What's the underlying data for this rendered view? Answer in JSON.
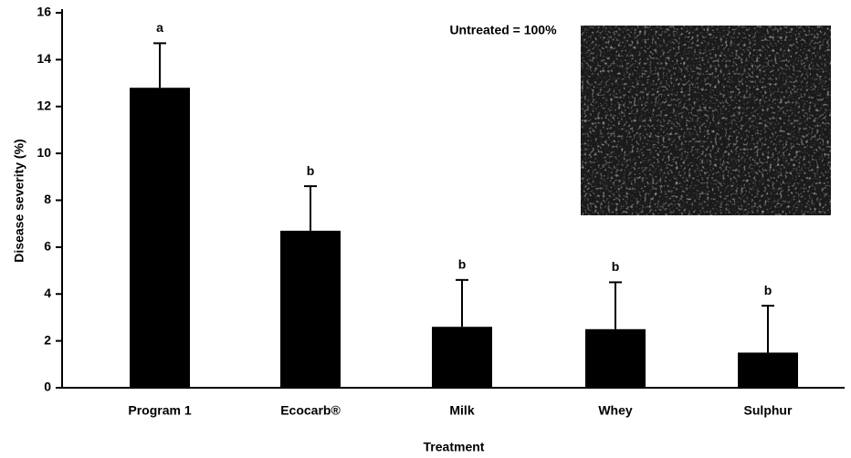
{
  "chart_data": {
    "type": "bar",
    "x_label": "Treatment",
    "y_label": "Disease severity (%)",
    "annotation": "Untreated = 100%",
    "categories": [
      "Program 1",
      "Ecocarb®",
      "Milk",
      "Whey",
      "Sulphur"
    ],
    "values": [
      12.8,
      6.7,
      2.6,
      2.5,
      1.5
    ],
    "errors": [
      1.9,
      1.9,
      2.0,
      2.0,
      2.0
    ],
    "letters": [
      "a",
      "b",
      "b",
      "b",
      "b"
    ],
    "color": "#000000",
    "ylim": [
      0,
      16
    ],
    "yticks": [
      0,
      2,
      4,
      6,
      8,
      10,
      12,
      14,
      16
    ],
    "grid": false
  }
}
